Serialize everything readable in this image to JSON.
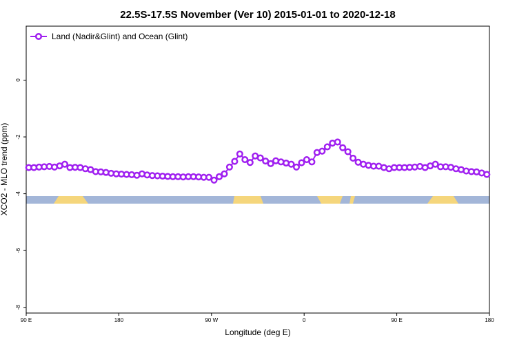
{
  "chart_data": {
    "type": "line",
    "title": "22.5S-17.5S November (Ver 10)   2015-01-01 to 2020-12-18",
    "x_label": "Longitude (deg E)",
    "y_label": "XCO2 - MLO trend (ppm)",
    "xlim": [
      90,
      540
    ],
    "ylim": [
      -8.2,
      1.9
    ],
    "xticks": [
      {
        "value": 90,
        "label": "90 E"
      },
      180,
      {
        "value": 270,
        "label": "90 W"
      },
      {
        "value": 360,
        "label": "0"
      },
      {
        "value": 450,
        "label": "90 E"
      },
      {
        "value": 540,
        "label": "180"
      }
    ],
    "yticks": [
      -8,
      -6,
      -4,
      -2,
      0
    ],
    "legend": "upper left",
    "x": [
      92.5,
      97.5,
      102.5,
      107.5,
      112.5,
      117.5,
      122.5,
      127.5,
      132.5,
      137.5,
      142.5,
      147.5,
      152.5,
      157.5,
      162.5,
      167.5,
      172.5,
      177.5,
      182.5,
      187.5,
      192.5,
      197.5,
      202.5,
      207.5,
      212.5,
      217.5,
      222.5,
      227.5,
      232.5,
      237.5,
      242.5,
      247.5,
      252.5,
      257.5,
      262.5,
      267.5,
      272.5,
      277.5,
      282.5,
      287.5,
      292.5,
      297.5,
      302.5,
      307.5,
      312.5,
      317.5,
      322.5,
      327.5,
      332.5,
      337.5,
      342.5,
      347.5,
      352.5,
      357.5,
      362.5,
      367.5,
      372.5,
      377.5,
      382.5,
      387.5,
      392.5,
      397.5,
      402.5,
      407.5,
      412.5,
      417.5,
      422.5,
      427.5,
      432.5,
      437.5,
      442.5,
      447.5,
      452.5,
      457.5,
      462.5,
      467.5,
      472.5,
      477.5,
      482.5,
      487.5,
      492.5,
      497.5,
      502.5,
      507.5,
      512.5,
      517.5,
      522.5,
      527.5,
      532.5,
      537.5
    ],
    "series": [
      {
        "name": "Land (Nadir&Glint) and Ocean (Glint)",
        "color": "#a020f0",
        "values": [
          -3.08,
          -3.08,
          -3.06,
          -3.05,
          -3.04,
          -3.06,
          -3.02,
          -2.96,
          -3.08,
          -3.07,
          -3.08,
          -3.12,
          -3.15,
          -3.22,
          -3.23,
          -3.25,
          -3.28,
          -3.3,
          -3.31,
          -3.32,
          -3.33,
          -3.35,
          -3.3,
          -3.34,
          -3.36,
          -3.37,
          -3.38,
          -3.39,
          -3.4,
          -3.4,
          -3.41,
          -3.4,
          -3.4,
          -3.41,
          -3.42,
          -3.42,
          -3.52,
          -3.4,
          -3.3,
          -3.06,
          -2.86,
          -2.6,
          -2.8,
          -2.9,
          -2.67,
          -2.74,
          -2.85,
          -2.94,
          -2.84,
          -2.88,
          -2.92,
          -2.96,
          -3.06,
          -2.91,
          -2.8,
          -2.88,
          -2.55,
          -2.5,
          -2.35,
          -2.22,
          -2.18,
          -2.38,
          -2.52,
          -2.75,
          -2.89,
          -2.96,
          -3.0,
          -3.03,
          -3.03,
          -3.08,
          -3.12,
          -3.08,
          -3.08,
          -3.08,
          -3.07,
          -3.06,
          -3.04,
          -3.08,
          -3.02,
          -2.96,
          -3.05,
          -3.05,
          -3.07,
          -3.12,
          -3.15,
          -3.2,
          -3.22,
          -3.23,
          -3.27,
          -3.32
        ]
      }
    ]
  }
}
